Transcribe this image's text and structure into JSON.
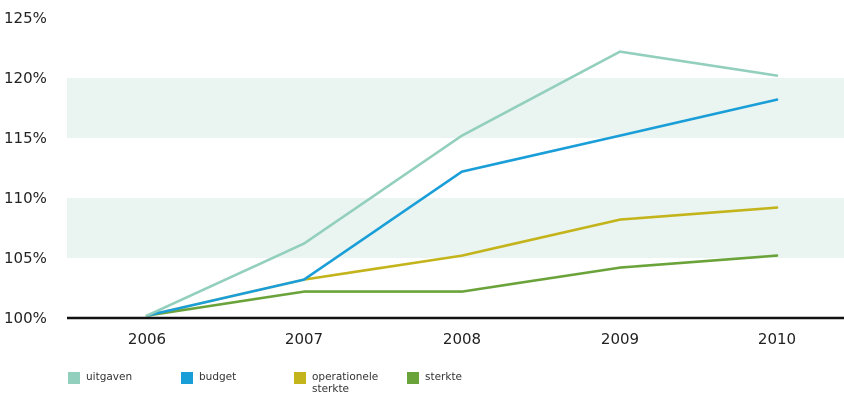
{
  "chart_data": {
    "type": "line",
    "x": [
      "2006",
      "2007",
      "2008",
      "2009",
      "2010"
    ],
    "ylim": [
      100,
      125
    ],
    "yticks": [
      "100%",
      "105%",
      "110%",
      "115%",
      "120%",
      "125%"
    ],
    "ytick_values": [
      100,
      105,
      110,
      115,
      120,
      125
    ],
    "grid": "alternating horizontal bands",
    "legend_position": "bottom",
    "series": [
      {
        "name": "uitgaven",
        "color": "#93cfbd",
        "values": [
          100.2,
          106.2,
          115.2,
          122.2,
          120.2
        ]
      },
      {
        "name": "budget",
        "color": "#1a9ed8",
        "values": [
          100.2,
          103.2,
          112.2,
          115.2,
          118.2
        ]
      },
      {
        "name": "operationele sterkte",
        "color": "#c4b41c",
        "values": [
          100.2,
          103.2,
          105.2,
          108.2,
          109.2
        ]
      },
      {
        "name": "sterkte",
        "color": "#6aa33a",
        "values": [
          100.2,
          102.2,
          102.2,
          104.2,
          105.2
        ]
      }
    ],
    "colors": {
      "band": "#eaf5f1",
      "axis": "#111111"
    }
  }
}
